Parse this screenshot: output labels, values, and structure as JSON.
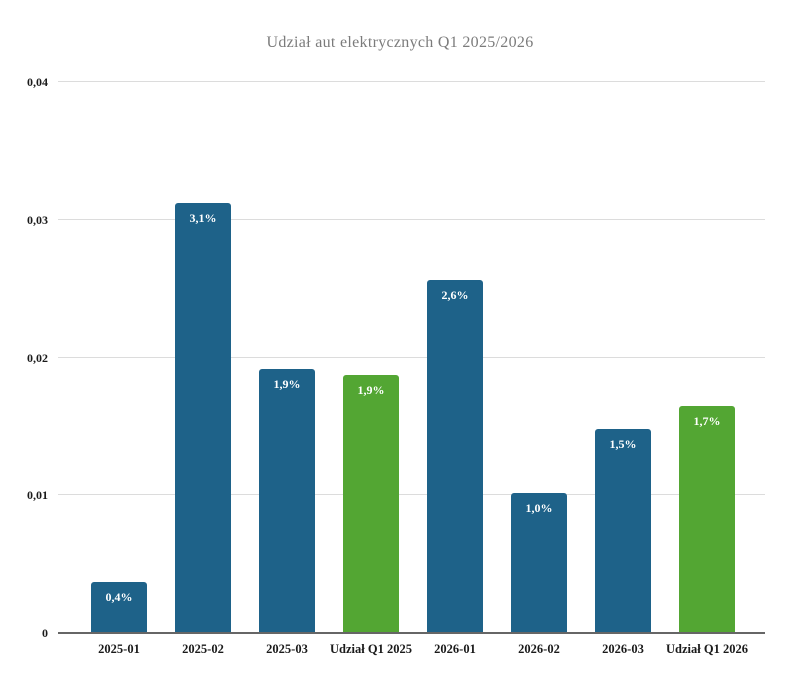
{
  "chart_data": {
    "type": "bar",
    "title": "Udział aut elektrycznych Q1 2025/2026",
    "categories": [
      "2025-01",
      "2025-02",
      "2025-03",
      "Udział Q1 2025",
      "2026-01",
      "2026-02",
      "2026-03",
      "Udział Q1 2026"
    ],
    "values": [
      0.0037,
      0.0312,
      0.0192,
      0.0187,
      0.0256,
      0.0102,
      0.0148,
      0.0165
    ],
    "bar_labels": [
      "0,4%",
      "3,1%",
      "1,9%",
      "1,9%",
      "2,6%",
      "1,0%",
      "1,5%",
      "1,7%"
    ],
    "series_types": [
      "month",
      "month",
      "month",
      "quarter",
      "month",
      "month",
      "month",
      "quarter"
    ],
    "colors": {
      "month": "#1e6289",
      "quarter": "#53a633"
    },
    "xlabel": "",
    "ylabel": "",
    "ylim": [
      0,
      0.04
    ],
    "yticks": [
      {
        "value": 0,
        "label": "0"
      },
      {
        "value": 0.01,
        "label": "0,01"
      },
      {
        "value": 0.02,
        "label": "0,02"
      },
      {
        "value": 0.03,
        "label": "0,03"
      },
      {
        "value": 0.04,
        "label": "0,04"
      }
    ],
    "grid": "horizontal",
    "legend": "none"
  }
}
